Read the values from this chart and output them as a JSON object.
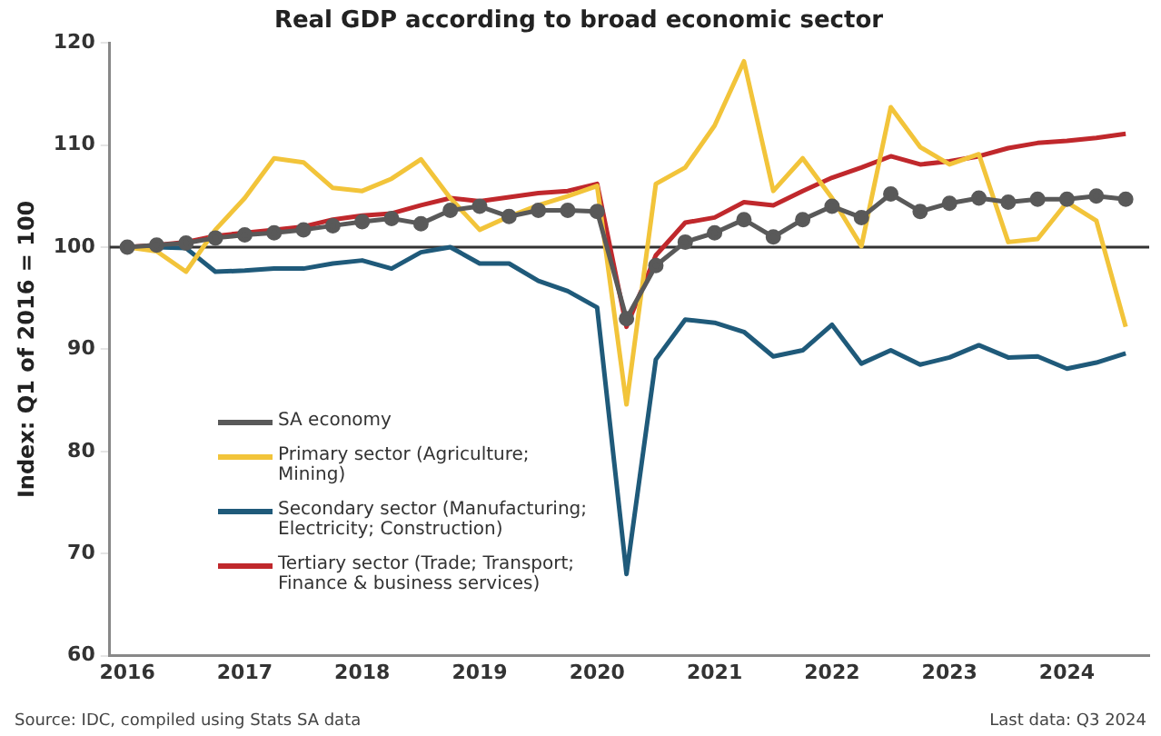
{
  "chart_data": {
    "type": "line",
    "title": "Real GDP according to broad economic sector",
    "ylabel": "Index: Q1 of 2016 = 100",
    "x": [
      2016,
      2016.25,
      2016.5,
      2016.75,
      2017,
      2017.25,
      2017.5,
      2017.75,
      2018,
      2018.25,
      2018.5,
      2018.75,
      2019,
      2019.25,
      2019.5,
      2019.75,
      2020,
      2020.25,
      2020.5,
      2020.75,
      2021,
      2021.25,
      2021.5,
      2021.75,
      2022,
      2022.25,
      2022.5,
      2022.75,
      2023,
      2023.25,
      2023.5,
      2023.75,
      2024,
      2024.25,
      2024.5
    ],
    "series": [
      {
        "name": "SA economy",
        "color": "#595959",
        "marker": "circle",
        "values": [
          100,
          100.2,
          100.4,
          100.9,
          101.2,
          101.4,
          101.7,
          102.1,
          102.5,
          102.8,
          102.3,
          103.6,
          104,
          103,
          103.6,
          103.6,
          103.5,
          93,
          98.2,
          100.5,
          101.4,
          102.7,
          101,
          102.7,
          104,
          102.9,
          105.2,
          103.5,
          104.3,
          104.8,
          104.4,
          104.7,
          104.7,
          105,
          104.7
        ]
      },
      {
        "name": "Primary sector (Agriculture; Mining)",
        "color": "#f2c43a",
        "values": [
          100,
          99.6,
          97.6,
          101.7,
          104.8,
          108.7,
          108.3,
          105.8,
          105.5,
          106.7,
          108.6,
          104.8,
          101.7,
          103,
          104.1,
          105,
          106,
          84.6,
          106.2,
          107.8,
          111.9,
          118.2,
          105.5,
          108.7,
          104.8,
          100.1,
          113.7,
          109.8,
          108.1,
          109.1,
          100.5,
          100.8,
          104.4,
          102.6,
          92.2
        ]
      },
      {
        "name": "Secondary sector (Manufacturing; Electricity; Construction)",
        "color": "#1f5a7a",
        "values": [
          100,
          100,
          99.9,
          97.6,
          97.7,
          97.9,
          97.9,
          98.4,
          98.7,
          97.9,
          99.5,
          100,
          98.4,
          98.4,
          96.7,
          95.7,
          94.1,
          68,
          89,
          92.9,
          92.6,
          91.7,
          89.3,
          89.9,
          92.4,
          88.6,
          89.9,
          88.5,
          89.2,
          90.4,
          89.2,
          89.3,
          88.1,
          88.7,
          89.6
        ]
      },
      {
        "name": "Tertiary sector (Trade; Transport; Finance & business services)",
        "color": "#c0282c",
        "values": [
          100,
          100.2,
          100.5,
          101.1,
          101.4,
          101.7,
          102,
          102.7,
          103.1,
          103.3,
          104.1,
          104.8,
          104.5,
          104.9,
          105.3,
          105.5,
          106.2,
          92.2,
          99.2,
          102.4,
          102.9,
          104.4,
          104.1,
          105.5,
          106.8,
          107.8,
          108.9,
          108.1,
          108.4,
          108.9,
          109.7,
          110.2,
          110.4,
          110.7,
          111.1
        ]
      }
    ],
    "xlim": [
      2015.85,
      2024.7
    ],
    "xticks": [
      2016,
      2017,
      2018,
      2019,
      2020,
      2021,
      2022,
      2023,
      2024
    ],
    "ylim": [
      60,
      120
    ],
    "yticks": [
      60,
      70,
      80,
      90,
      100,
      110,
      120
    ],
    "ref_lines": [
      {
        "axis": "y",
        "value": 100,
        "color": "#333333"
      }
    ],
    "grid": false,
    "legend": "bottom left",
    "annotations": [
      "Source: IDC, compiled using Stats SA data",
      "Last data: Q3 2024"
    ]
  }
}
